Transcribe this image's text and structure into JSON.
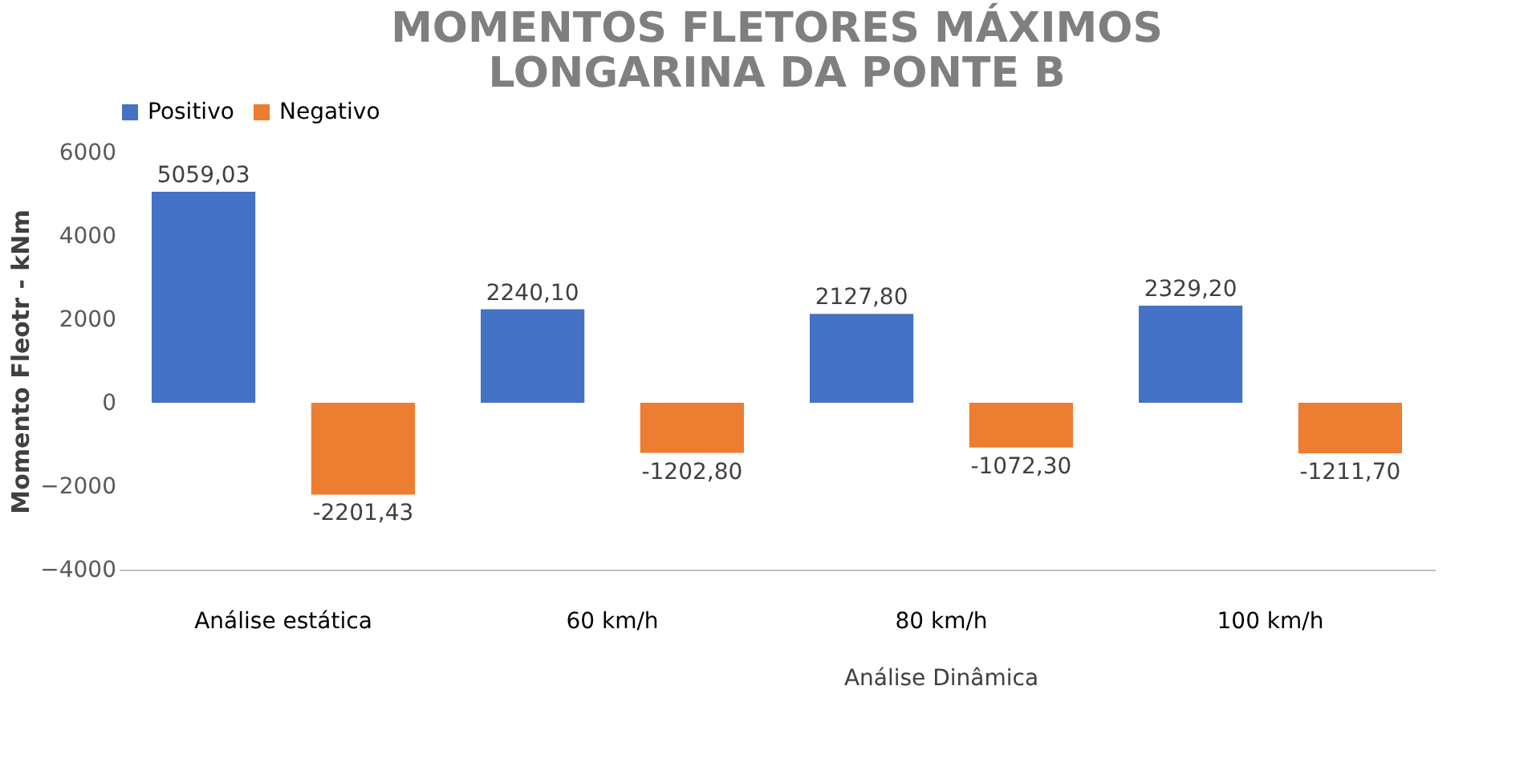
{
  "chart_data": {
    "type": "bar",
    "title": "MOMENTOS FLETORES MÁXIMOS\nLONGARINA DA PONTE B",
    "ylabel": "Momento Fleotr - kNm",
    "categories": [
      "Análise estática",
      "60 km/h",
      "80 km/h",
      "100 km/h"
    ],
    "series": [
      {
        "name": "Positivo",
        "color": "#4472c4",
        "values": [
          5059.03,
          2240.1,
          2127.8,
          2329.2
        ],
        "value_labels": [
          "5059,03",
          "2240,10",
          "2127,80",
          "2329,20"
        ]
      },
      {
        "name": "Negativo",
        "color": "#ed7d31",
        "values": [
          -2201.43,
          -1202.8,
          -1072.3,
          -1211.7
        ],
        "value_labels": [
          "-2201,43",
          "-1202,80",
          "-1072,30",
          "-1211,70"
        ]
      }
    ],
    "ylim": [
      -4000,
      6000
    ],
    "yticks": [
      -4000,
      -2000,
      0,
      2000,
      4000,
      6000
    ],
    "annotations": [
      "Análise Dinâmica"
    ],
    "legend": "top",
    "grid": false
  }
}
